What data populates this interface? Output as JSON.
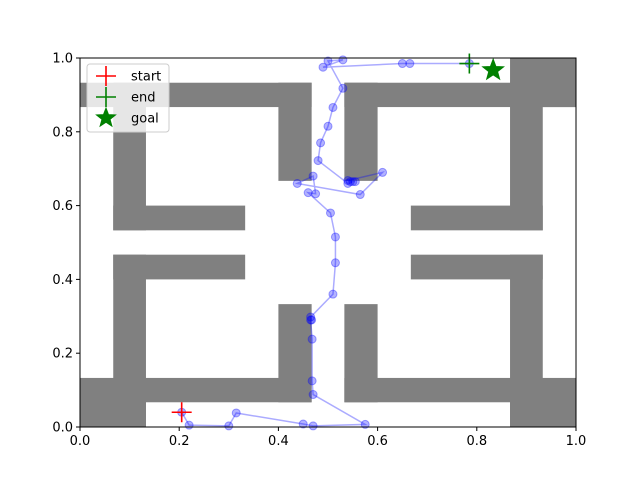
{
  "chart_data": {
    "type": "scatter",
    "title": "",
    "xlabel": "",
    "ylabel": "",
    "xlim": [
      0,
      1
    ],
    "ylim": [
      0,
      1
    ],
    "grid": false,
    "legend_placement": "top-left",
    "x_ticks": [
      "0.0",
      "0.2",
      "0.4",
      "0.6",
      "0.8",
      "1.0"
    ],
    "y_ticks": [
      "0.0",
      "0.2",
      "0.4",
      "0.6",
      "0.8",
      "1.0"
    ],
    "colors": {
      "wall": "#808080",
      "path": "#0000ff",
      "start": "#ff0000",
      "end": "#008000",
      "goal": "#008000",
      "end_marker_outline": "#1f77b4"
    },
    "walls": [
      {
        "x0": 0.0,
        "x1": 0.133,
        "y0": 0.0,
        "y1": 0.133
      },
      {
        "x0": 0.067,
        "x1": 0.133,
        "y0": 0.0,
        "y1": 0.467
      },
      {
        "x0": 0.067,
        "x1": 0.333,
        "y0": 0.4,
        "y1": 0.467
      },
      {
        "x0": 0.133,
        "x1": 0.467,
        "y0": 0.067,
        "y1": 0.133
      },
      {
        "x0": 0.4,
        "x1": 0.467,
        "y0": 0.067,
        "y1": 0.333
      },
      {
        "x0": 0.533,
        "x1": 0.6,
        "y0": 0.067,
        "y1": 0.333
      },
      {
        "x0": 0.533,
        "x1": 0.867,
        "y0": 0.067,
        "y1": 0.133
      },
      {
        "x0": 0.867,
        "x1": 1.0,
        "y0": 0.0,
        "y1": 0.133
      },
      {
        "x0": 0.867,
        "x1": 0.933,
        "y0": 0.0,
        "y1": 0.467
      },
      {
        "x0": 0.667,
        "x1": 0.933,
        "y0": 0.4,
        "y1": 0.467
      },
      {
        "x0": 0.067,
        "x1": 0.133,
        "y0": 0.533,
        "y1": 0.933
      },
      {
        "x0": 0.067,
        "x1": 0.333,
        "y0": 0.533,
        "y1": 0.6
      },
      {
        "x0": 0.0,
        "x1": 0.467,
        "y0": 0.867,
        "y1": 0.933
      },
      {
        "x0": 0.4,
        "x1": 0.467,
        "y0": 0.667,
        "y1": 0.933
      },
      {
        "x0": 0.533,
        "x1": 0.6,
        "y0": 0.667,
        "y1": 0.933
      },
      {
        "x0": 0.533,
        "x1": 1.0,
        "y0": 0.867,
        "y1": 0.933
      },
      {
        "x0": 0.867,
        "x1": 1.0,
        "y0": 0.867,
        "y1": 1.0
      },
      {
        "x0": 0.867,
        "x1": 0.933,
        "y0": 0.533,
        "y1": 0.933
      },
      {
        "x0": 0.667,
        "x1": 0.933,
        "y0": 0.533,
        "y1": 0.6
      }
    ],
    "path": {
      "x": [
        0.205,
        0.22,
        0.3,
        0.315,
        0.45,
        0.47,
        0.575,
        0.47,
        0.468,
        0.468,
        0.465,
        0.467,
        0.465,
        0.51,
        0.515,
        0.515,
        0.505,
        0.46,
        0.475,
        0.47,
        0.438,
        0.565,
        0.61,
        0.54,
        0.545,
        0.555,
        0.55,
        0.54,
        0.48,
        0.485,
        0.5,
        0.51,
        0.53,
        0.5,
        0.53,
        0.49,
        0.65,
        0.665,
        0.785
      ],
      "y": [
        0.04,
        0.005,
        0.003,
        0.038,
        0.008,
        0.003,
        0.007,
        0.088,
        0.125,
        0.238,
        0.29,
        0.29,
        0.298,
        0.36,
        0.445,
        0.515,
        0.58,
        0.635,
        0.632,
        0.68,
        0.66,
        0.63,
        0.69,
        0.668,
        0.665,
        0.665,
        0.665,
        0.66,
        0.722,
        0.77,
        0.815,
        0.866,
        0.918,
        0.992,
        0.995,
        0.975,
        0.985,
        0.985,
        0.985
      ]
    },
    "start": {
      "x": 0.205,
      "y": 0.04
    },
    "end": {
      "x": 0.785,
      "y": 0.985
    },
    "goal": {
      "x": 0.833,
      "y": 0.967
    },
    "legend": [
      {
        "label": "start",
        "marker": "plus",
        "color": "#ff0000"
      },
      {
        "label": "end",
        "marker": "plus",
        "color": "#008000"
      },
      {
        "label": "goal",
        "marker": "star",
        "color": "#008000"
      }
    ]
  }
}
